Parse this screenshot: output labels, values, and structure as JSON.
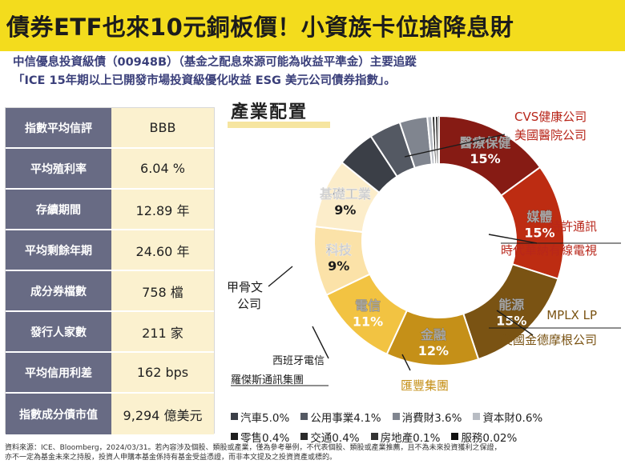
{
  "banner": {
    "title": "債券ETF也來10元銅板價！小資族卡位搶降息財"
  },
  "subtitle": {
    "line1": "中信優息投資級債（00948B）（基金之配息來源可能為收益平準金）主要追蹤",
    "line2": "「ICE 15年期以上已開發市場投資級優化收益 ESG 美元公司債券指數」。"
  },
  "stats": [
    {
      "label": "指數平均信評",
      "value": "BBB"
    },
    {
      "label": "平均殖利率",
      "value": "6.04 %"
    },
    {
      "label": "存續期間",
      "value": "12.89 年"
    },
    {
      "label": "平均剩餘年期",
      "value": "24.60 年"
    },
    {
      "label": "成分券檔數",
      "value": "758 檔"
    },
    {
      "label": "發行人家數",
      "value": "211 家"
    },
    {
      "label": "平均信用利差",
      "value": "162 bps"
    },
    {
      "label": "指數成分債市值",
      "value": "9,294 億美元"
    }
  ],
  "chart_data": {
    "type": "pie",
    "style": "donut",
    "title": "產業配置",
    "slices": [
      {
        "label": "醫療保健",
        "value": 15,
        "display": "15%",
        "color": "#861b14",
        "text_color": "#ffffff",
        "examples": [
          "CVS健康公司",
          "美國醫院公司"
        ]
      },
      {
        "label": "媒體",
        "value": 15,
        "display": "15%",
        "color": "#bd2c12",
        "text_color": "#ffffff",
        "examples": [
          "特許通訊",
          "時代華納有線電視"
        ]
      },
      {
        "label": "能源",
        "value": 15,
        "display": "15%",
        "color": "#7a5313",
        "text_color": "#ffffff",
        "examples": [
          "MPLX LP",
          "美國金德摩根公司"
        ]
      },
      {
        "label": "金融",
        "value": 12,
        "display": "12%",
        "color": "#c59018",
        "text_color": "#ffffff",
        "examples": [
          "匯豐集團"
        ]
      },
      {
        "label": "電信",
        "value": 11,
        "display": "11%",
        "color": "#f2c342",
        "text_color": "#ffffff",
        "examples": [
          "西班牙電信",
          "羅傑斯通訊集團"
        ]
      },
      {
        "label": "科技",
        "value": 9,
        "display": "9%",
        "color": "#fbe2a8",
        "text_color": "#1c1c1c",
        "examples": [
          "甲骨文",
          "公司"
        ]
      },
      {
        "label": "基礎工業",
        "value": 9,
        "display": "9%",
        "color": "#fcedca",
        "text_color": "#1c1c1c",
        "examples": []
      },
      {
        "label": "汽車",
        "value": 5.0,
        "display": "5.0%",
        "color": "#3b3f47",
        "text_color": "#ffffff",
        "examples": []
      },
      {
        "label": "公用事業",
        "value": 4.1,
        "display": "4.1%",
        "color": "#545963",
        "text_color": "#ffffff",
        "examples": []
      },
      {
        "label": "消費財",
        "value": 3.6,
        "display": "3.6%",
        "color": "#80858f",
        "text_color": "#ffffff",
        "examples": []
      },
      {
        "label": "資本財",
        "value": 0.6,
        "display": "0.6%",
        "color": "#b8bcc3",
        "text_color": "#ffffff",
        "examples": []
      },
      {
        "label": "零售",
        "value": 0.4,
        "display": "0.4%",
        "color": "#1e1e1e",
        "text_color": "#ffffff",
        "examples": []
      },
      {
        "label": "交通",
        "value": 0.4,
        "display": "0.4%",
        "color": "#2a2a2a",
        "text_color": "#ffffff",
        "examples": []
      },
      {
        "label": "房地產",
        "value": 0.1,
        "display": "0.1%",
        "color": "#333333",
        "text_color": "#ffffff",
        "examples": []
      },
      {
        "label": "服務",
        "value": 0.02,
        "display": "0.02%",
        "color": "#111111",
        "text_color": "#ffffff",
        "examples": []
      }
    ],
    "legend": [
      [
        "汽車5.0%",
        "公用事業4.1%",
        "消費財3.6%",
        "資本財0.6%"
      ],
      [
        "零售0.4%",
        "交通0.4%",
        "房地產0.1%",
        "服務0.02%"
      ]
    ]
  },
  "colors": {
    "banner": "#f3dc1d",
    "subtitle": "#3a3f7a",
    "label_bg": "#686b84",
    "value_bg": "#fbf1cf",
    "example_red": "#b8261a",
    "example_brown": "#7a5313",
    "example_gold": "#c59018"
  },
  "footer": {
    "line1": "資料來源：ICE、Bloomberg，2024/03/31。若內容涉及個股、類股或產業，僅為參考舉例，不代表個股、類股或產業推薦，且不為未來投資獲利之保證，",
    "line2": "亦不一定為基金未來之持股，投資人申購本基金係持有基金受益憑證，而非本文提及之投資資產或標的。"
  }
}
